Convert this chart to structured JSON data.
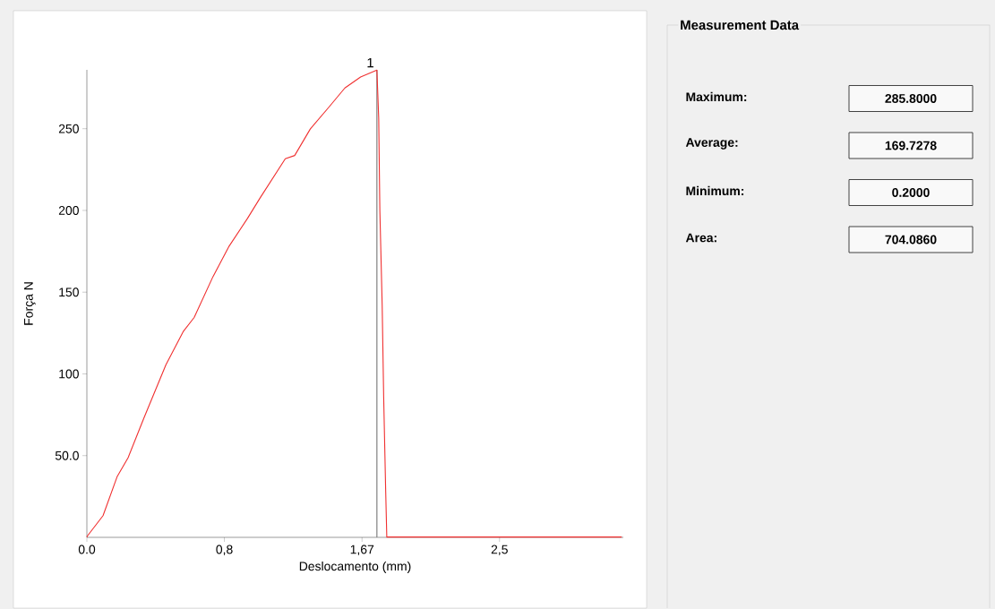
{
  "chart_data": [
    {
      "type": "line",
      "xlabel": "Deslocamento (mm)",
      "ylabel": "Força N",
      "xlim": [
        0,
        3.25
      ],
      "ylim": [
        0,
        286
      ],
      "xticks": [
        {
          "value": 0,
          "label": "0.0"
        },
        {
          "value": 0.833,
          "label": "0,8"
        },
        {
          "value": 1.667,
          "label": "1,67"
        },
        {
          "value": 2.5,
          "label": "2,5"
        }
      ],
      "yticks": [
        {
          "value": 50,
          "label": "50.0"
        },
        100,
        150,
        200,
        250
      ],
      "ref_lines": [
        {
          "axis": "x",
          "value": 1.757,
          "color": "#808080"
        }
      ],
      "annotations": [
        {
          "text": "1",
          "x": 1.757,
          "y": 285.8
        }
      ],
      "series": [
        {
          "color": "#f03030",
          "x": [
            0,
            0.003,
            0.098,
            0.184,
            0.25,
            0.345,
            0.479,
            0.583,
            0.65,
            0.764,
            0.859,
            0.973,
            1.049,
            1.202,
            1.259,
            1.354,
            1.468,
            1.563,
            1.658,
            1.757,
            1.768,
            1.775,
            1.789,
            1.798,
            1.81,
            1.817,
            3.24
          ],
          "values": [
            0.2,
            0.8,
            13.3,
            37.3,
            48.8,
            72.9,
            105.6,
            125.8,
            134.5,
            159.5,
            177.7,
            195.1,
            207.6,
            231.6,
            233.6,
            249.9,
            263.4,
            274.9,
            281.6,
            285.8,
            256.6,
            199.9,
            142.2,
            86.3,
            29.6,
            0.2,
            0.2
          ]
        }
      ]
    },
    {
      "type": "other",
      "title": "Measurement Data",
      "annotations": [
        "Maximum:",
        "285.8000",
        "Average:",
        "169.7278",
        "Minimum:",
        "0.2000",
        "Area:",
        "704.0860"
      ]
    }
  ]
}
